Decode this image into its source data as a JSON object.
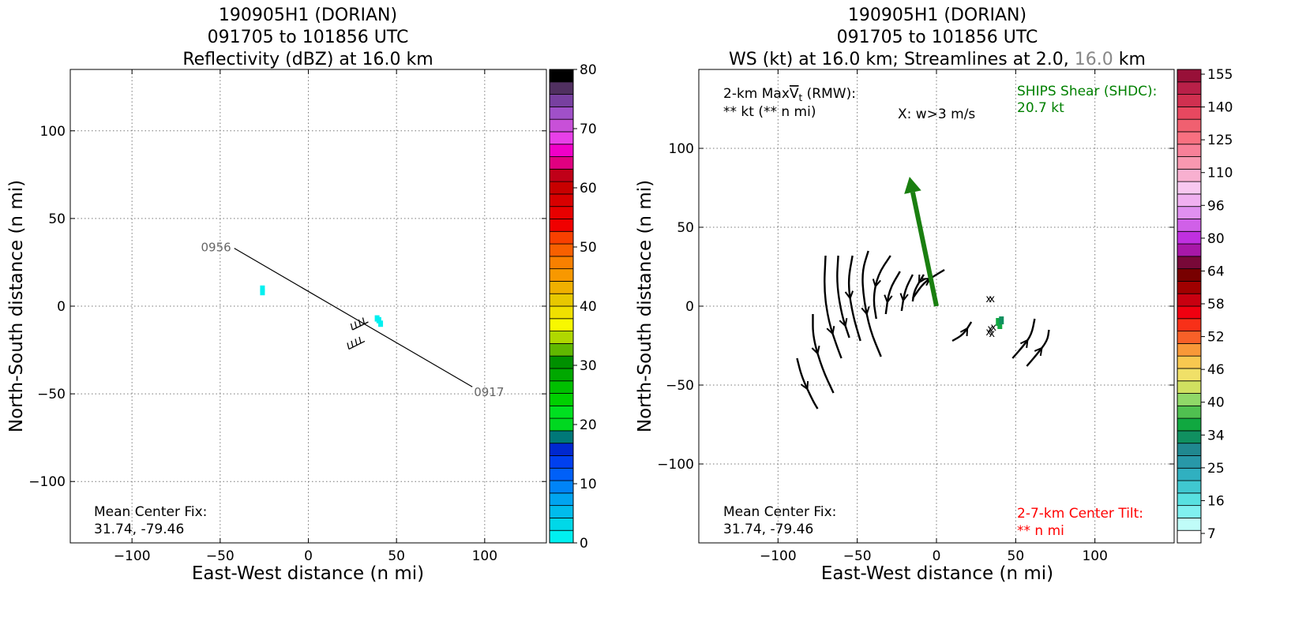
{
  "chart_data": [
    {
      "type": "scatter",
      "title_lines": [
        "190905H1 (DORIAN)",
        "091705 to 101856 UTC",
        "Reflectivity (dBZ) at 16.0 km"
      ],
      "xlabel": "East-West distance (n mi)",
      "ylabel": "North-South distance (n mi)",
      "xlim": [
        -135,
        135
      ],
      "ylim": [
        -135,
        135
      ],
      "xticks": [
        -100,
        -50,
        0,
        50,
        100
      ],
      "yticks": [
        -100,
        -50,
        0,
        50,
        100
      ],
      "grid": true,
      "colorbar": {
        "ticks": [
          0,
          10,
          20,
          30,
          40,
          50,
          60,
          70,
          80
        ],
        "range": [
          0,
          80
        ],
        "colors": [
          "#00f0f0",
          "#00d8e8",
          "#00bcec",
          "#00a4f0",
          "#0084f8",
          "#0060f8",
          "#0040f0",
          "#0028d0",
          "#007878",
          "#00d820",
          "#00e020",
          "#00d000",
          "#00c000",
          "#00a800",
          "#009000",
          "#60b800",
          "#b0d800",
          "#f8f800",
          "#f0e000",
          "#e8c800",
          "#f0b000",
          "#f89800",
          "#f88000",
          "#f86000",
          "#f84000",
          "#f00000",
          "#e80000",
          "#d80000",
          "#c80000",
          "#c00018",
          "#e00080",
          "#f000c8",
          "#e840e8",
          "#c850d8",
          "#a050c8",
          "#7840a0",
          "#503060",
          "#000000"
        ]
      },
      "annotations": {
        "center_fix_label": "Mean Center Fix:",
        "center_fix_value": "31.74, -79.46"
      },
      "flight_track": {
        "start_label": "0956",
        "end_label": "0917",
        "points": [
          [
            -42,
            33
          ],
          [
            93,
            -46
          ]
        ]
      },
      "reflectivity_points": [
        {
          "x": -26,
          "y": 10,
          "dbz": 2
        },
        {
          "x": -26,
          "y": 8,
          "dbz": 2
        },
        {
          "x": 40,
          "y": -8,
          "dbz": 1
        },
        {
          "x": 41,
          "y": -10,
          "dbz": 2
        },
        {
          "x": 39,
          "y": -7,
          "dbz": 1
        }
      ],
      "wind_barbs": [
        {
          "x": 34,
          "y": -9
        },
        {
          "x": 32,
          "y": -20
        }
      ]
    },
    {
      "type": "scatter",
      "title_lines": [
        "190905H1 (DORIAN)",
        "091705 to 101856 UTC"
      ],
      "title_line3": {
        "prefix": "WS (kt) at 16.0 km; Streamlines at 2.0, ",
        "highlight": "16.0",
        "suffix": " km"
      },
      "xlabel": "East-West distance (n mi)",
      "ylabel": "North-South distance (n mi)",
      "xlim": [
        -150,
        150
      ],
      "ylim": [
        -150,
        150
      ],
      "xticks": [
        -100,
        -50,
        0,
        50,
        100
      ],
      "yticks": [
        -100,
        -50,
        0,
        50,
        100
      ],
      "grid": true,
      "colorbar": {
        "ticks": [
          7,
          16,
          25,
          34,
          40,
          46,
          52,
          58,
          64,
          80,
          96,
          110,
          125,
          140,
          155
        ],
        "colors": [
          "#ffffff",
          "#c0fcf8",
          "#80f0f0",
          "#58e0e0",
          "#40c8d0",
          "#30b0c0",
          "#2898a8",
          "#208890",
          "#109060",
          "#10a840",
          "#50c050",
          "#90d868",
          "#d0e060",
          "#f0e068",
          "#f8c850",
          "#f89838",
          "#f86028",
          "#f83018",
          "#f00010",
          "#c80010",
          "#a00000",
          "#780000",
          "#780838",
          "#a818a8",
          "#c030e0",
          "#d060e8",
          "#e090f0",
          "#f0b0f0",
          "#f8c8f0",
          "#f8b0d0",
          "#f898b0",
          "#f88098",
          "#f87080",
          "#f06070",
          "#e84860",
          "#d03050",
          "#b82048",
          "#981038"
        ],
        "range": [
          0,
          160
        ]
      },
      "annotations": {
        "maxvt_prefix": "2-km Max",
        "maxvt_symbol": "V",
        "maxvt_sub": "t",
        "maxvt_suffix": " (RMW):",
        "maxvt_value": "** kt (** n mi)",
        "w_marker": "X: w>3 m/s",
        "ships_label": "SHIPS Shear (SHDC):",
        "ships_value": "20.7 kt",
        "center_fix_label": "Mean Center Fix:",
        "center_fix_value": "31.74, -79.46",
        "tilt_label": "2-7-km Center Tilt:",
        "tilt_value": "** n mi"
      },
      "shear_arrow": {
        "from": [
          0,
          0
        ],
        "to": [
          -17,
          82
        ],
        "color": "#1a7f10"
      },
      "ws_points": [
        {
          "x": 39,
          "y": -10,
          "kt": 38
        },
        {
          "x": 40,
          "y": -12,
          "kt": 42
        },
        {
          "x": 41,
          "y": -9,
          "kt": 36
        }
      ],
      "w_markers": [
        {
          "x": 33,
          "y": 5
        },
        {
          "x": 35,
          "y": 5
        },
        {
          "x": 34,
          "y": -14
        },
        {
          "x": 36,
          "y": -13
        },
        {
          "x": 33,
          "y": -16
        },
        {
          "x": 35,
          "y": -17
        }
      ],
      "streamlines": [
        {
          "points": [
            [
              -70,
              32
            ],
            [
              -71,
              10
            ],
            [
              -68,
              -10
            ],
            [
              -63,
              -25
            ],
            [
              -60,
              -33
            ]
          ],
          "arrow_at": 2,
          "dir": "down"
        },
        {
          "points": [
            [
              -62,
              32
            ],
            [
              -63,
              15
            ],
            [
              -60,
              -5
            ],
            [
              -55,
              -20
            ]
          ],
          "arrow_at": 2,
          "dir": "down"
        },
        {
          "points": [
            [
              -53,
              32
            ],
            [
              -56,
              15
            ],
            [
              -53,
              -5
            ],
            [
              -48,
              -22
            ]
          ],
          "arrow_at": 1,
          "dir": "down"
        },
        {
          "points": [
            [
              -43,
              35
            ],
            [
              -47,
              22
            ],
            [
              -46,
              5
            ],
            [
              -42,
              -15
            ],
            [
              -35,
              -32
            ]
          ],
          "arrow_at": 2,
          "dir": "down"
        },
        {
          "points": [
            [
              -29,
              32
            ],
            [
              -37,
              20
            ],
            [
              -40,
              5
            ],
            [
              -38,
              -8
            ]
          ],
          "arrow_at": 1,
          "dir": "down"
        },
        {
          "points": [
            [
              -23,
              22
            ],
            [
              -30,
              10
            ],
            [
              -32,
              -5
            ]
          ],
          "arrow_at": 1,
          "dir": "down"
        },
        {
          "points": [
            [
              -15,
              20
            ],
            [
              -20,
              10
            ],
            [
              -22,
              -3
            ]
          ],
          "arrow_at": 1,
          "dir": "down"
        },
        {
          "points": [
            [
              -15,
              5
            ],
            [
              -8,
              15
            ],
            [
              0,
              20
            ],
            [
              5,
              23
            ]
          ],
          "arrow_at": 1,
          "dir": "up"
        },
        {
          "points": [
            [
              -8,
              20
            ],
            [
              -14,
              10
            ],
            [
              -15,
              3
            ]
          ],
          "arrow_at": 0,
          "dir": "down"
        },
        {
          "points": [
            [
              -78,
              -5
            ],
            [
              -78,
              -20
            ],
            [
              -72,
              -40
            ],
            [
              -65,
              -55
            ]
          ],
          "arrow_at": 1,
          "dir": "down"
        },
        {
          "points": [
            [
              -88,
              -33
            ],
            [
              -85,
              -45
            ],
            [
              -78,
              -60
            ],
            [
              -75,
              -65
            ]
          ],
          "arrow_at": 1,
          "dir": "down"
        },
        {
          "points": [
            [
              10,
              -22
            ],
            [
              17,
              -18
            ],
            [
              22,
              -10
            ]
          ],
          "arrow_at": 1,
          "dir": "up"
        },
        {
          "points": [
            [
              48,
              -33
            ],
            [
              55,
              -25
            ],
            [
              60,
              -18
            ],
            [
              62,
              -8
            ]
          ],
          "arrow_at": 1,
          "dir": "up"
        },
        {
          "points": [
            [
              57,
              -38
            ],
            [
              63,
              -31
            ],
            [
              70,
              -22
            ],
            [
              71,
              -15
            ]
          ],
          "arrow_at": 1,
          "dir": "up"
        }
      ]
    }
  ]
}
